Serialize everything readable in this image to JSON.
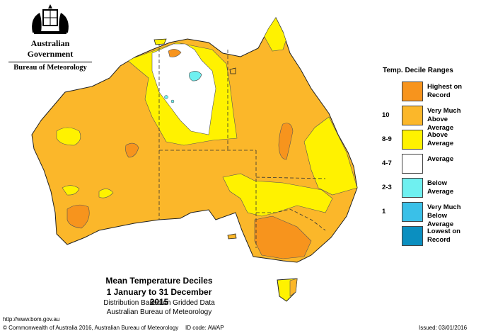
{
  "header": {
    "government": "Australian Government",
    "bureau": "Bureau of Meteorology"
  },
  "legend": {
    "title": "Temp. Decile Ranges",
    "items": [
      {
        "label": "Highest on Record",
        "range": "",
        "color": "#f7941d"
      },
      {
        "label": "Very Much Above Average",
        "range": "10",
        "color": "#fbb72a"
      },
      {
        "label": "Above Average",
        "range": "8-9",
        "color": "#fff200"
      },
      {
        "label": "Average",
        "range": "4-7",
        "color": "#ffffff"
      },
      {
        "label": "Below Average",
        "range": "2-3",
        "color": "#6ff0f0"
      },
      {
        "label": "Very Much Below Average",
        "range": "1",
        "color": "#3ac0e8"
      },
      {
        "label": "Lowest on Record",
        "range": "",
        "color": "#0b8fc0"
      }
    ]
  },
  "caption": {
    "title": "Mean Temperature Deciles",
    "period": "1 January to 31 December 2015",
    "line1": "Distribution Based on Gridded Data",
    "line2": "Australian Bureau of Meteorology"
  },
  "footer": {
    "url": "http://www.bom.gov.au",
    "copyright": "© Commonwealth of Australia 2016, Australian Bureau of Meteorology",
    "id_code": "ID code: AWAP",
    "issued": "Issued: 03/01/2016"
  }
}
